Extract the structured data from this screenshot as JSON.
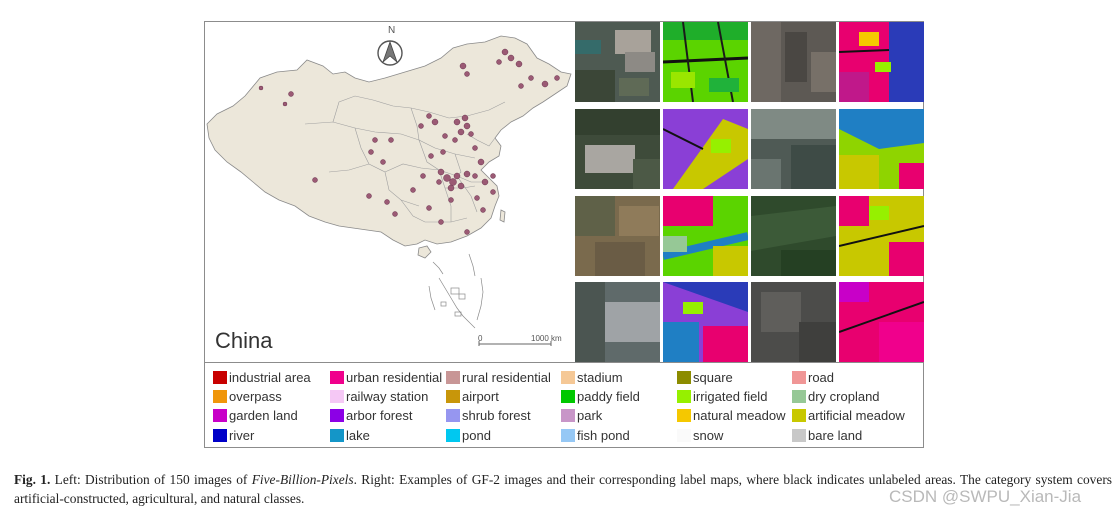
{
  "map": {
    "region_label": "China",
    "north_label": "N",
    "scale_start": "0",
    "scale_end": "1000 km"
  },
  "legend": {
    "items": [
      {
        "label": "industrial area",
        "color": "#c80000"
      },
      {
        "label": "urban residential",
        "color": "#f0008c"
      },
      {
        "label": "rural residential",
        "color": "#c89696"
      },
      {
        "label": "stadium",
        "color": "#f5c896"
      },
      {
        "label": "square",
        "color": "#8c8c00"
      },
      {
        "label": "road",
        "color": "#f09696"
      },
      {
        "label": "overpass",
        "color": "#f0960a"
      },
      {
        "label": "railway station",
        "color": "#f5c8f5"
      },
      {
        "label": "airport",
        "color": "#c8960a"
      },
      {
        "label": "paddy field",
        "color": "#00c800"
      },
      {
        "label": "irrigated field",
        "color": "#96f000"
      },
      {
        "label": "dry cropland",
        "color": "#96c896"
      },
      {
        "label": "garden land",
        "color": "#c800c8"
      },
      {
        "label": "arbor forest",
        "color": "#8c00e6"
      },
      {
        "label": "shrub forest",
        "color": "#9696f0"
      },
      {
        "label": "park",
        "color": "#c896c8"
      },
      {
        "label": "natural meadow",
        "color": "#f5c800"
      },
      {
        "label": "artificial meadow",
        "color": "#c8c800"
      },
      {
        "label": "river",
        "color": "#0000c8"
      },
      {
        "label": "lake",
        "color": "#1496c8"
      },
      {
        "label": "pond",
        "color": "#00c8f0"
      },
      {
        "label": "fish pond",
        "color": "#96c8f5"
      },
      {
        "label": "snow",
        "color": "#fafafa"
      },
      {
        "label": "bare land",
        "color": "#c8c8c8"
      }
    ]
  },
  "caption": {
    "fig_label": "Fig. 1.",
    "text_before_italic": " Left: Distribution of 150 images of ",
    "italic": "Five-Billion-Pixels",
    "text_after_italic": ". Right: Examples of GF-2 images and their corresponding label maps, where black indicates unlabeled areas. The category system covers artificial-constructed, agricultural, and natural classes."
  },
  "watermark": "CSDN @SWPU_Xian-Jia"
}
